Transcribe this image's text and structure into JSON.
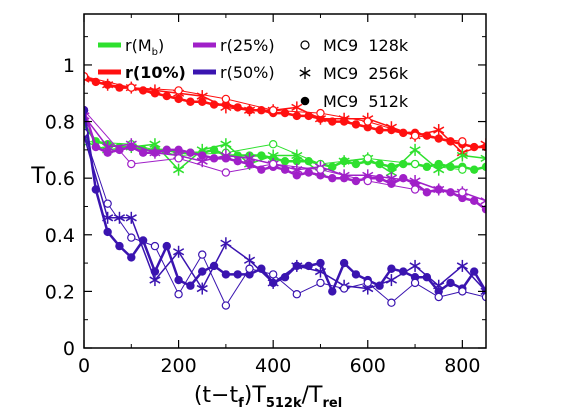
{
  "chart_data": {
    "type": "line",
    "xlabel": {
      "base": "(t−t",
      "sub1": "f",
      "mid": ")T",
      "sub2": "512k",
      "slash": "/T",
      "sub3": "rel"
    },
    "ylabel": "T",
    "xlim": [
      0,
      850
    ],
    "ylim": [
      0,
      1.18
    ],
    "xticks": [
      0,
      200,
      400,
      600,
      800
    ],
    "yticks": [
      0,
      0.2,
      0.4,
      0.6,
      0.8,
      1
    ],
    "ytick_labels": [
      "0",
      "0.2",
      "0.4",
      "0.6",
      "0.8",
      "1"
    ],
    "legend": {
      "placement": "top",
      "colors": [
        {
          "base": "r(M",
          "sub": "b",
          "tail": ")",
          "color": "#2ee02e",
          "bold": false
        },
        {
          "base": "r(25%)",
          "sub": "",
          "tail": "",
          "color": "#a020c8",
          "bold": false
        },
        {
          "base": "r(10%)",
          "sub": "",
          "tail": "",
          "color": "#ff1010",
          "bold": true
        },
        {
          "base": "r(50%)",
          "sub": "",
          "tail": "",
          "color": "#3a14b0",
          "bold": false
        }
      ],
      "markers": [
        {
          "marker": "open-circle",
          "label": "MC9  128k"
        },
        {
          "marker": "asterisk",
          "label": "MC9  256k"
        },
        {
          "marker": "filled-circle",
          "label": "MC9  512k"
        }
      ]
    },
    "series": [
      {
        "name": "r(10%)",
        "run": "MC9 512k",
        "marker": "filled-circle",
        "color": "#ff1010",
        "width": 2.5,
        "x": [
          0,
          25,
          50,
          75,
          100,
          125,
          150,
          175,
          200,
          225,
          250,
          275,
          300,
          325,
          350,
          375,
          400,
          425,
          450,
          475,
          500,
          525,
          550,
          575,
          600,
          625,
          650,
          675,
          700,
          725,
          750,
          775,
          800,
          825,
          850
        ],
        "y": [
          0.96,
          0.94,
          0.93,
          0.92,
          0.92,
          0.91,
          0.9,
          0.89,
          0.88,
          0.87,
          0.87,
          0.86,
          0.86,
          0.85,
          0.84,
          0.84,
          0.83,
          0.83,
          0.82,
          0.82,
          0.81,
          0.8,
          0.8,
          0.79,
          0.78,
          0.77,
          0.77,
          0.76,
          0.76,
          0.75,
          0.74,
          0.73,
          0.72,
          0.71,
          0.71
        ]
      },
      {
        "name": "r(10%)",
        "run": "MC9 256k",
        "marker": "asterisk",
        "color": "#ff1010",
        "width": 1.5,
        "x": [
          0,
          50,
          100,
          150,
          200,
          250,
          300,
          350,
          400,
          450,
          500,
          550,
          600,
          650,
          700,
          750,
          800,
          850
        ],
        "y": [
          0.95,
          0.93,
          0.92,
          0.91,
          0.9,
          0.89,
          0.85,
          0.84,
          0.84,
          0.85,
          0.81,
          0.81,
          0.81,
          0.78,
          0.75,
          0.77,
          0.69,
          0.72
        ]
      },
      {
        "name": "r(10%)",
        "run": "MC9 128k",
        "marker": "open-circle",
        "color": "#ff1010",
        "width": 1,
        "x": [
          0,
          100,
          200,
          300,
          400,
          500,
          600,
          700,
          800
        ],
        "y": [
          0.96,
          0.92,
          0.91,
          0.88,
          0.84,
          0.83,
          0.8,
          0.75,
          0.73
        ]
      },
      {
        "name": "r(Mb)",
        "run": "MC9 512k",
        "marker": "filled-circle",
        "color": "#2ee02e",
        "width": 2.5,
        "x": [
          0,
          25,
          50,
          75,
          100,
          125,
          150,
          175,
          200,
          225,
          250,
          275,
          300,
          325,
          350,
          375,
          400,
          425,
          450,
          475,
          500,
          525,
          550,
          575,
          600,
          625,
          650,
          675,
          700,
          725,
          750,
          775,
          800,
          825,
          850
        ],
        "y": [
          0.79,
          0.73,
          0.72,
          0.71,
          0.71,
          0.7,
          0.7,
          0.7,
          0.69,
          0.69,
          0.69,
          0.7,
          0.68,
          0.68,
          0.68,
          0.68,
          0.67,
          0.66,
          0.66,
          0.66,
          0.65,
          0.64,
          0.66,
          0.65,
          0.66,
          0.65,
          0.64,
          0.65,
          0.65,
          0.64,
          0.65,
          0.64,
          0.64,
          0.63,
          0.64
        ]
      },
      {
        "name": "r(Mb)",
        "run": "MC9 256k",
        "marker": "asterisk",
        "color": "#2ee02e",
        "width": 1.5,
        "x": [
          0,
          50,
          100,
          150,
          200,
          250,
          300,
          350,
          400,
          450,
          500,
          550,
          600,
          650,
          700,
          750,
          800,
          850
        ],
        "y": [
          0.73,
          0.7,
          0.71,
          0.72,
          0.63,
          0.7,
          0.72,
          0.65,
          0.68,
          0.68,
          0.62,
          0.66,
          0.67,
          0.62,
          0.7,
          0.63,
          0.68,
          0.67
        ]
      },
      {
        "name": "r(Mb)",
        "run": "MC9 128k",
        "marker": "open-circle",
        "color": "#2ee02e",
        "width": 1,
        "x": [
          0,
          100,
          200,
          300,
          400,
          500,
          600,
          700,
          800
        ],
        "y": [
          0.73,
          0.72,
          0.68,
          0.69,
          0.72,
          0.65,
          0.67,
          0.65,
          0.63
        ]
      },
      {
        "name": "r(25%)",
        "run": "MC9 512k",
        "marker": "filled-circle",
        "color": "#a020c8",
        "width": 2.5,
        "x": [
          0,
          25,
          50,
          75,
          100,
          125,
          150,
          175,
          200,
          225,
          250,
          275,
          300,
          325,
          350,
          375,
          400,
          425,
          450,
          475,
          500,
          525,
          550,
          575,
          600,
          625,
          650,
          675,
          700,
          725,
          750,
          775,
          800,
          825,
          850
        ],
        "y": [
          0.84,
          0.71,
          0.69,
          0.7,
          0.71,
          0.69,
          0.69,
          0.7,
          0.7,
          0.69,
          0.68,
          0.67,
          0.67,
          0.66,
          0.65,
          0.63,
          0.64,
          0.63,
          0.61,
          0.62,
          0.61,
          0.6,
          0.6,
          0.59,
          0.6,
          0.6,
          0.58,
          0.6,
          0.58,
          0.55,
          0.56,
          0.55,
          0.53,
          0.52,
          0.49
        ]
      },
      {
        "name": "r(25%)",
        "run": "MC9 256k",
        "marker": "asterisk",
        "color": "#a020c8",
        "width": 1.5,
        "x": [
          0,
          50,
          100,
          150,
          200,
          250,
          300,
          350,
          400,
          450,
          500,
          550,
          600,
          650,
          700,
          750,
          800,
          850
        ],
        "y": [
          0.82,
          0.71,
          0.72,
          0.69,
          0.68,
          0.66,
          0.68,
          0.67,
          0.65,
          0.63,
          0.64,
          0.61,
          0.61,
          0.6,
          0.59,
          0.56,
          0.55,
          0.52
        ]
      },
      {
        "name": "r(25%)",
        "run": "MC9 128k",
        "marker": "open-circle",
        "color": "#a020c8",
        "width": 1,
        "x": [
          0,
          100,
          200,
          300,
          400,
          500,
          600,
          700,
          800
        ],
        "y": [
          0.84,
          0.65,
          0.67,
          0.62,
          0.65,
          0.63,
          0.59,
          0.56,
          0.55
        ]
      },
      {
        "name": "r(50%)",
        "run": "MC9 512k",
        "marker": "filled-circle",
        "color": "#3a14b0",
        "width": 2.5,
        "x": [
          0,
          25,
          50,
          75,
          100,
          125,
          150,
          175,
          200,
          225,
          250,
          275,
          300,
          325,
          350,
          375,
          400,
          425,
          450,
          475,
          500,
          525,
          550,
          575,
          600,
          625,
          650,
          675,
          700,
          725,
          750,
          775,
          800,
          825,
          850
        ],
        "y": [
          0.84,
          0.56,
          0.41,
          0.36,
          0.32,
          0.38,
          0.27,
          0.36,
          0.24,
          0.22,
          0.27,
          0.29,
          0.26,
          0.26,
          0.26,
          0.28,
          0.23,
          0.25,
          0.29,
          0.29,
          0.3,
          0.2,
          0.3,
          0.26,
          0.24,
          0.22,
          0.28,
          0.27,
          0.25,
          0.25,
          0.2,
          0.23,
          0.21,
          0.27,
          0.2
        ]
      },
      {
        "name": "r(50%)",
        "run": "MC9 256k",
        "marker": "asterisk",
        "color": "#3a14b0",
        "width": 1.5,
        "x": [
          0,
          50,
          75,
          100,
          150,
          200,
          250,
          300,
          350,
          400,
          450,
          500,
          550,
          600,
          650,
          700,
          750,
          800,
          850
        ],
        "y": [
          0.75,
          0.46,
          0.46,
          0.46,
          0.24,
          0.34,
          0.21,
          0.37,
          0.31,
          0.23,
          0.29,
          0.27,
          0.22,
          0.21,
          0.24,
          0.29,
          0.22,
          0.29,
          0.2
        ]
      },
      {
        "name": "r(50%)",
        "run": "MC9 128k",
        "marker": "open-circle",
        "color": "#3a14b0",
        "width": 1,
        "x": [
          0,
          50,
          100,
          150,
          200,
          250,
          300,
          350,
          400,
          450,
          500,
          550,
          600,
          650,
          700,
          750,
          800,
          850
        ],
        "y": [
          0.76,
          0.51,
          0.39,
          0.36,
          0.19,
          0.33,
          0.15,
          0.28,
          0.26,
          0.19,
          0.23,
          0.21,
          0.23,
          0.16,
          0.23,
          0.18,
          0.2,
          0.18
        ]
      }
    ]
  }
}
